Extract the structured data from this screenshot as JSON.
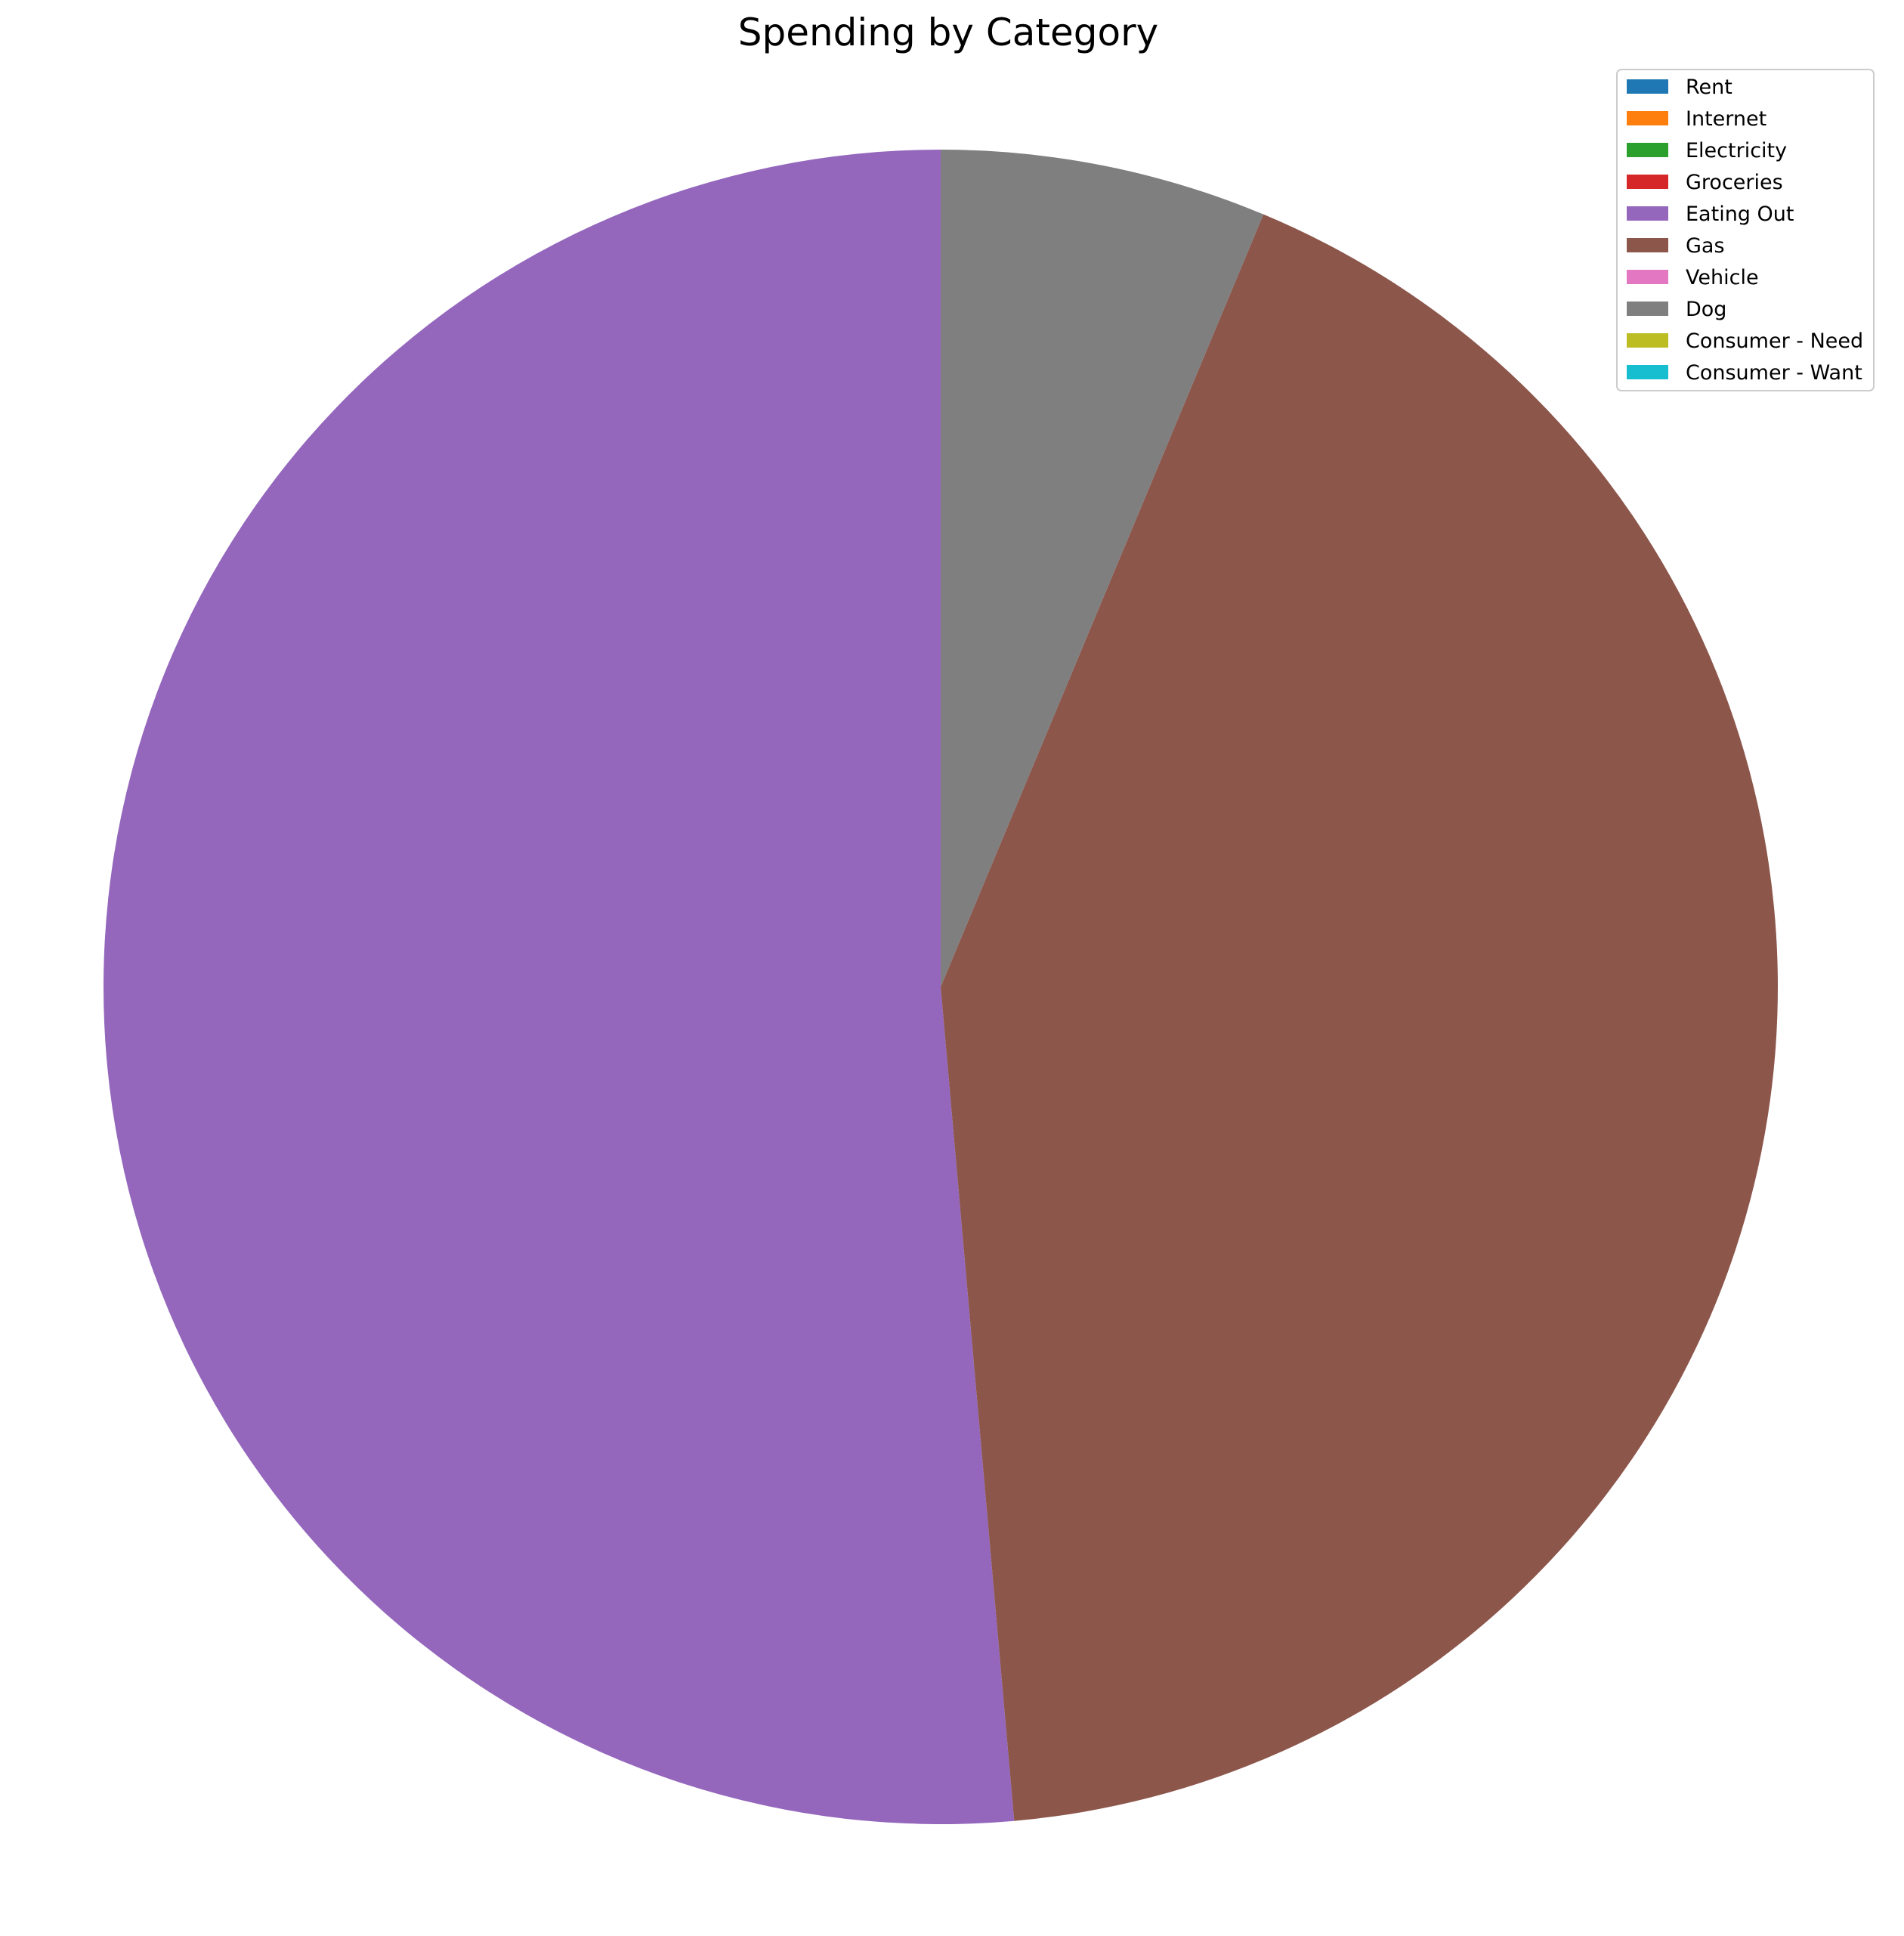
{
  "chart_data": {
    "type": "pie",
    "title": "Spending by Category",
    "categories": [
      "Rent",
      "Internet",
      "Electricity",
      "Groceries",
      "Eating Out",
      "Gas",
      "Vehicle",
      "Dog",
      "Consumer - Need",
      "Consumer - Want"
    ],
    "values": [
      0,
      0,
      0,
      0,
      51.4,
      42.3,
      0,
      6.3,
      0,
      0
    ],
    "colors": [
      "#1f77b4",
      "#ff7f0e",
      "#2ca02c",
      "#d62728",
      "#9467bd",
      "#8c564b",
      "#e377c2",
      "#7f7f7f",
      "#bcbd22",
      "#17becf"
    ],
    "start_angle_deg": 90,
    "direction": "counterclockwise",
    "legend_position": "top-right"
  }
}
